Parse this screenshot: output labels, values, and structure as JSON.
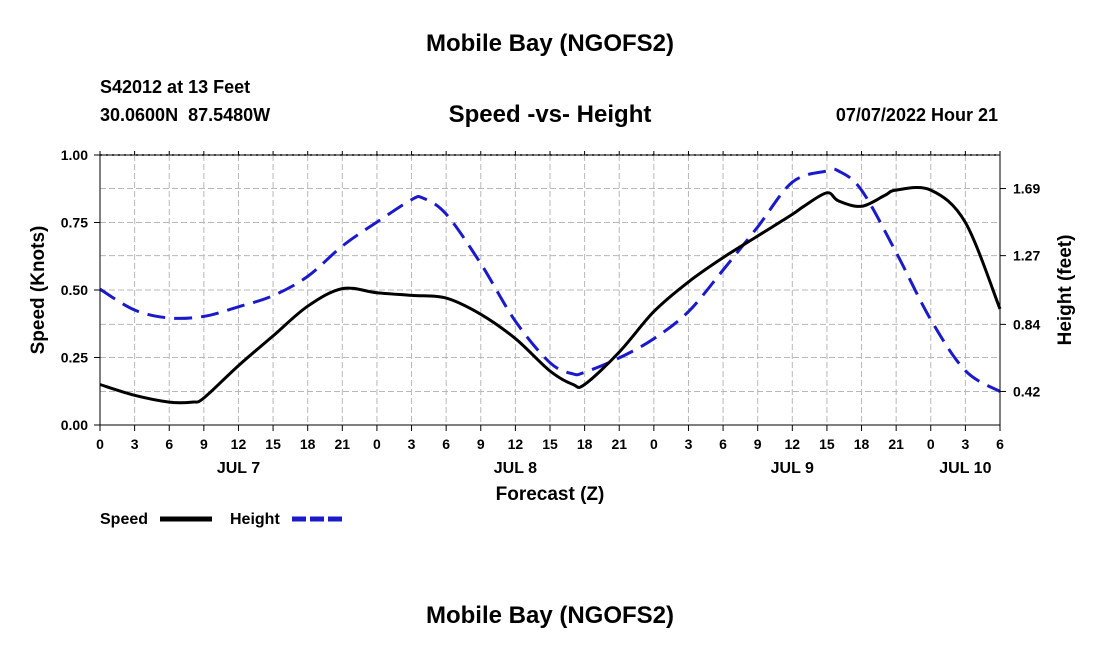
{
  "page": {
    "title_top": "Mobile Bay (NGOFS2)",
    "title_bottom": "Mobile Bay (NGOFS2)",
    "station_line": "S42012 at 13 Feet",
    "coord_line": "30.0600N  87.5480W",
    "datetime": "07/07/2022 Hour 21"
  },
  "chart_data": {
    "type": "line",
    "title": "Speed -vs- Height",
    "xlabel": "Forecast (Z)",
    "ylabel": "Speed (Knots)",
    "y2label": "Height (feet)",
    "x_unit": "hours since JUL 7 00Z",
    "xlim": [
      0,
      78
    ],
    "ylim": [
      0,
      1.0
    ],
    "y2lim": [
      0.21,
      1.9
    ],
    "x_ticks": [
      0,
      3,
      6,
      9,
      12,
      15,
      18,
      21,
      24,
      27,
      30,
      33,
      36,
      39,
      42,
      45,
      48,
      51,
      54,
      57,
      60,
      63,
      66,
      69,
      72,
      75,
      78
    ],
    "x_tick_labels": [
      "0",
      "3",
      "6",
      "9",
      "12",
      "15",
      "18",
      "21",
      "0",
      "3",
      "6",
      "9",
      "12",
      "15",
      "18",
      "21",
      "0",
      "3",
      "6",
      "9",
      "12",
      "15",
      "18",
      "21",
      "0",
      "3",
      "6"
    ],
    "day_labels": [
      {
        "x": 12,
        "label": "JUL 7"
      },
      {
        "x": 36,
        "label": "JUL 8"
      },
      {
        "x": 60,
        "label": "JUL 9"
      },
      {
        "x": 75,
        "label": "JUL 10"
      }
    ],
    "y_ticks": [
      0,
      0.25,
      0.5,
      0.75,
      1.0
    ],
    "y_tick_labels": [
      "0.00",
      "0.25",
      "0.50",
      "0.75",
      "1.00"
    ],
    "y2_ticks": [
      0.42,
      0.84,
      1.27,
      1.69
    ],
    "y2_tick_labels": [
      "0.42",
      "0.84",
      "1.27",
      "1.69"
    ],
    "grid": true,
    "series": [
      {
        "name": "Speed",
        "axis": "left",
        "color": "#000000",
        "dash": "solid",
        "x": [
          0,
          3,
          6,
          8,
          9,
          12,
          15,
          18,
          21,
          24,
          27,
          30,
          33,
          36,
          39,
          41,
          42,
          45,
          48,
          51,
          54,
          57,
          60,
          61,
          63,
          64,
          66,
          68,
          69,
          72,
          75,
          78
        ],
        "values": [
          0.15,
          0.11,
          0.085,
          0.085,
          0.1,
          0.22,
          0.33,
          0.44,
          0.505,
          0.49,
          0.48,
          0.47,
          0.41,
          0.32,
          0.2,
          0.15,
          0.15,
          0.27,
          0.42,
          0.53,
          0.62,
          0.7,
          0.78,
          0.81,
          0.86,
          0.83,
          0.81,
          0.85,
          0.87,
          0.87,
          0.75,
          0.43
        ]
      },
      {
        "name": "Height",
        "axis": "right",
        "color": "#1a1acc",
        "dash": "dashed",
        "x": [
          0,
          3,
          6,
          9,
          12,
          15,
          18,
          21,
          24,
          27,
          28,
          30,
          33,
          36,
          39,
          41,
          42,
          45,
          48,
          51,
          54,
          57,
          60,
          63,
          64,
          66,
          69,
          72,
          75,
          78
        ],
        "values": [
          1.06,
          0.93,
          0.88,
          0.89,
          0.95,
          1.02,
          1.14,
          1.33,
          1.48,
          1.62,
          1.63,
          1.53,
          1.22,
          0.86,
          0.6,
          0.53,
          0.54,
          0.63,
          0.75,
          0.92,
          1.18,
          1.45,
          1.73,
          1.8,
          1.8,
          1.68,
          1.29,
          0.87,
          0.55,
          0.42
        ]
      }
    ],
    "legend": [
      {
        "label": "Speed",
        "color": "#000000",
        "dash": "solid"
      },
      {
        "label": "Height",
        "color": "#1a1acc",
        "dash": "dashed"
      }
    ],
    "legend_placement": "bottom-left"
  }
}
